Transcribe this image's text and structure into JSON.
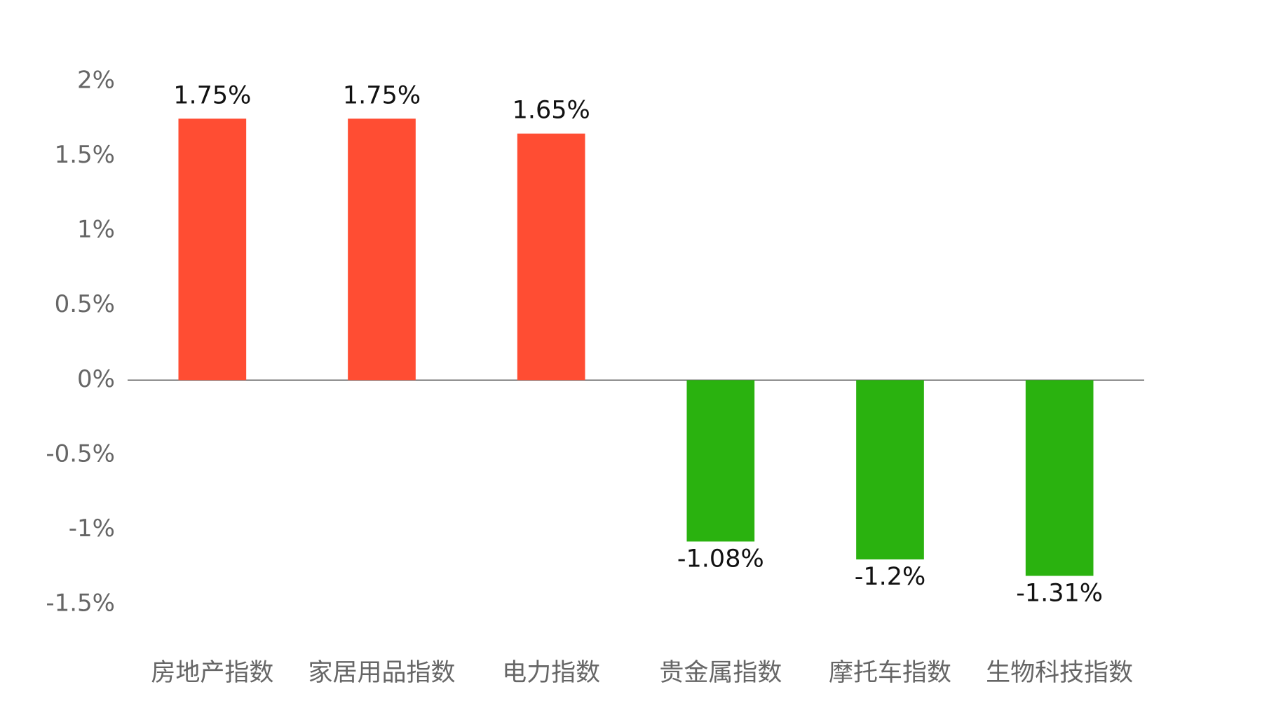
{
  "chart_data": {
    "type": "bar",
    "categories": [
      "房地产指数",
      "家居用品指数",
      "电力指数",
      "贵金属指数",
      "摩托车指数",
      "生物科技指数"
    ],
    "values": [
      1.75,
      1.75,
      1.65,
      -1.08,
      -1.2,
      -1.31
    ],
    "value_labels": [
      "1.75%",
      "1.75%",
      "1.65%",
      "-1.08%",
      "-1.2%",
      "-1.31%"
    ],
    "colors": [
      "#ff4d33",
      "#ff4d33",
      "#ff4d33",
      "#2ab20f",
      "#2ab20f",
      "#2ab20f"
    ],
    "ylim": [
      -1.5,
      2
    ],
    "yticks": [
      {
        "value": 2,
        "label": "2%"
      },
      {
        "value": 1.5,
        "label": "1.5%"
      },
      {
        "value": 1,
        "label": "1%"
      },
      {
        "value": 0.5,
        "label": "0.5%"
      },
      {
        "value": 0,
        "label": "0%"
      },
      {
        "value": -0.5,
        "label": "-0.5%"
      },
      {
        "value": -1,
        "label": "-1%"
      },
      {
        "value": -1.5,
        "label": "-1.5%"
      }
    ],
    "grid": false
  }
}
